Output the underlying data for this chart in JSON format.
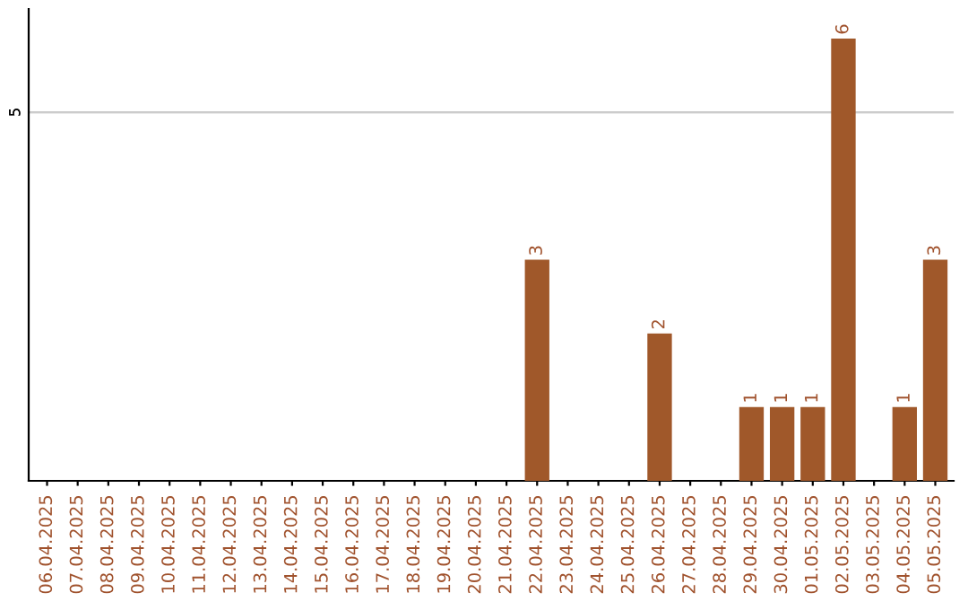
{
  "chart_data": {
    "type": "bar",
    "categories": [
      "06.04.2025",
      "07.04.2025",
      "08.04.2025",
      "09.04.2025",
      "10.04.2025",
      "11.04.2025",
      "12.04.2025",
      "13.04.2025",
      "14.04.2025",
      "15.04.2025",
      "16.04.2025",
      "17.04.2025",
      "18.04.2025",
      "19.04.2025",
      "20.04.2025",
      "21.04.2025",
      "22.04.2025",
      "23.04.2025",
      "24.04.2025",
      "25.04.2025",
      "26.04.2025",
      "27.04.2025",
      "28.04.2025",
      "29.04.2025",
      "30.04.2025",
      "01.05.2025",
      "02.05.2025",
      "03.05.2025",
      "04.05.2025",
      "05.05.2025"
    ],
    "values": [
      null,
      null,
      null,
      null,
      null,
      null,
      null,
      null,
      null,
      null,
      null,
      null,
      null,
      null,
      null,
      null,
      3,
      null,
      null,
      null,
      2,
      null,
      null,
      1,
      1,
      1,
      6,
      null,
      1,
      3
    ],
    "data_labels": true,
    "color": "#a0582a",
    "ylim": [
      0,
      6.4
    ],
    "ref_lines": [
      {
        "axis": "y",
        "value": 5,
        "label": "5",
        "color": "#cccccc"
      }
    ]
  }
}
